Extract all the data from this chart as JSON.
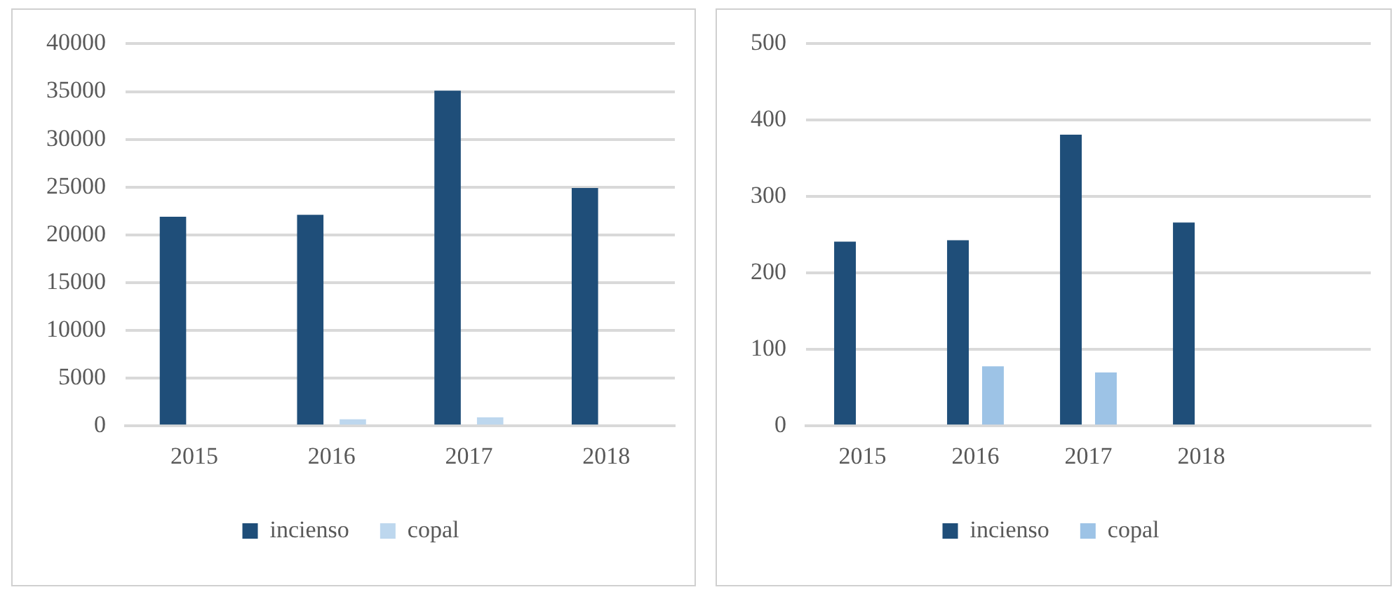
{
  "chart_data": [
    {
      "type": "bar",
      "categories": [
        "2015",
        "2016",
        "2017",
        "2018"
      ],
      "series": [
        {
          "name": "incienso",
          "color": "#1f4e79",
          "values": [
            21900,
            22100,
            35100,
            24900
          ]
        },
        {
          "name": "copal",
          "color": "#bdd7ee",
          "values": [
            null,
            700,
            900,
            null
          ]
        }
      ],
      "ylim": [
        0,
        40000
      ],
      "yticks": [
        0,
        5000,
        10000,
        15000,
        20000,
        25000,
        30000,
        35000,
        40000
      ],
      "grid": "y",
      "legend": "bottom"
    },
    {
      "type": "bar",
      "categories": [
        "2015",
        "2016",
        "2017",
        "2018",
        null
      ],
      "series": [
        {
          "name": "incienso",
          "color": "#1f4e79",
          "values": [
            241,
            243,
            381,
            266,
            null
          ]
        },
        {
          "name": "copal",
          "color": "#9dc3e6",
          "values": [
            null,
            78,
            70,
            null,
            null
          ]
        }
      ],
      "ylim": [
        0,
        500
      ],
      "yticks": [
        0,
        100,
        200,
        300,
        400,
        500
      ],
      "grid": "y",
      "legend": "bottom"
    }
  ]
}
